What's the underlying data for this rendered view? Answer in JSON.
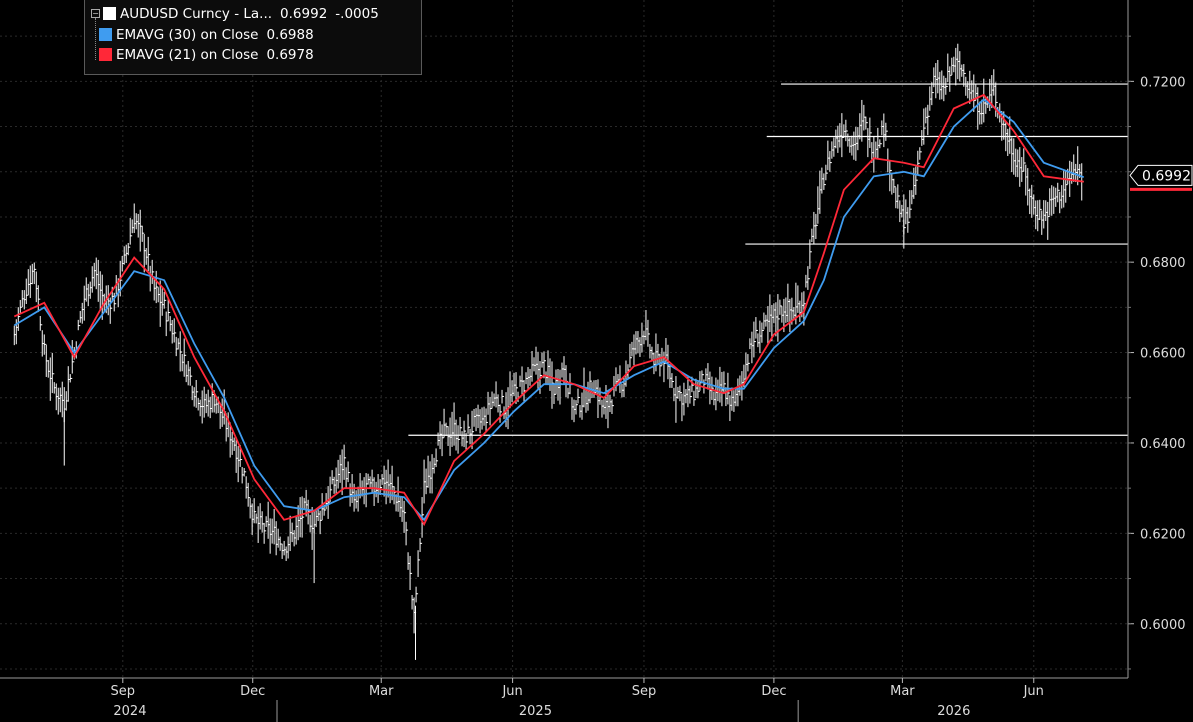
{
  "legend": {
    "items": [
      {
        "label": "AUDUSD Curncy - La...",
        "value": "0.6992",
        "change": "-.0005",
        "color": "#ffffff"
      },
      {
        "label": "EMAVG (30)  on Close",
        "value": "0.6988",
        "change": "",
        "color": "#3f9cf0"
      },
      {
        "label": "EMAVG (21)  on Close",
        "value": "0.6978",
        "change": "",
        "color": "#ff2838"
      }
    ]
  },
  "chart_data": {
    "type": "line",
    "title": "",
    "xlabel": "",
    "ylabel": "",
    "ylim": [
      0.588,
      0.738
    ],
    "yticks": [
      0.6,
      0.62,
      0.64,
      0.66,
      0.68,
      0.72
    ],
    "last_price_label": "0.6992",
    "last_price": 0.6992,
    "x_month_labels": [
      "Sep",
      "Dec",
      "Mar",
      "Jun",
      "Sep",
      "Dec",
      "Mar",
      "Jun"
    ],
    "x_year_labels": [
      "2024",
      "2025",
      "2026"
    ],
    "horizontal_levels": [
      {
        "value": 0.7194,
        "from": "2025-12-20"
      },
      {
        "value": 0.7078,
        "from": "2025-12-10"
      },
      {
        "value": 0.684,
        "from": "2025-11-25"
      },
      {
        "value": 0.6417,
        "from": "2025-04-03"
      }
    ],
    "series": [
      {
        "name": "AUDUSD Curncy - La...",
        "style": "bars",
        "color": "#ffffff",
        "points": [
          [
            "2024-07-01",
            0.664
          ],
          [
            "2024-07-08",
            0.673
          ],
          [
            "2024-07-15",
            0.679
          ],
          [
            "2024-07-22",
            0.66
          ],
          [
            "2024-07-29",
            0.652
          ],
          [
            "2024-08-05",
            0.649
          ],
          [
            "2024-08-12",
            0.66
          ],
          [
            "2024-08-19",
            0.672
          ],
          [
            "2024-08-26",
            0.678
          ],
          [
            "2024-09-02",
            0.671
          ],
          [
            "2024-09-09",
            0.672
          ],
          [
            "2024-09-16",
            0.68
          ],
          [
            "2024-09-23",
            0.69
          ],
          [
            "2024-09-30",
            0.684
          ],
          [
            "2024-10-07",
            0.674
          ],
          [
            "2024-10-14",
            0.67
          ],
          [
            "2024-10-21",
            0.664
          ],
          [
            "2024-10-28",
            0.658
          ],
          [
            "2024-11-04",
            0.652
          ],
          [
            "2024-11-11",
            0.648
          ],
          [
            "2024-11-18",
            0.65
          ],
          [
            "2024-11-25",
            0.645
          ],
          [
            "2024-12-02",
            0.64
          ],
          [
            "2024-12-09",
            0.633
          ],
          [
            "2024-12-16",
            0.623
          ],
          [
            "2024-12-23",
            0.621
          ],
          [
            "2024-12-30",
            0.62
          ],
          [
            "2025-01-06",
            0.617
          ],
          [
            "2025-01-13",
            0.62
          ],
          [
            "2025-01-20",
            0.625
          ],
          [
            "2025-01-27",
            0.622
          ],
          [
            "2025-02-03",
            0.626
          ],
          [
            "2025-02-10",
            0.631
          ],
          [
            "2025-02-17",
            0.636
          ],
          [
            "2025-02-24",
            0.626
          ],
          [
            "2025-03-03",
            0.63
          ],
          [
            "2025-03-10",
            0.63
          ],
          [
            "2025-03-17",
            0.632
          ],
          [
            "2025-03-24",
            0.629
          ],
          [
            "2025-03-31",
            0.624
          ],
          [
            "2025-04-07",
            0.601
          ],
          [
            "2025-04-14",
            0.63
          ],
          [
            "2025-04-21",
            0.637
          ],
          [
            "2025-04-28",
            0.642
          ],
          [
            "2025-05-05",
            0.643
          ],
          [
            "2025-05-12",
            0.641
          ],
          [
            "2025-05-19",
            0.644
          ],
          [
            "2025-05-26",
            0.645
          ],
          [
            "2025-06-02",
            0.65
          ],
          [
            "2025-06-09",
            0.648
          ],
          [
            "2025-06-16",
            0.651
          ],
          [
            "2025-06-23",
            0.653
          ],
          [
            "2025-06-30",
            0.656
          ],
          [
            "2025-07-07",
            0.657
          ],
          [
            "2025-07-14",
            0.652
          ],
          [
            "2025-07-21",
            0.657
          ],
          [
            "2025-07-28",
            0.647
          ],
          [
            "2025-08-04",
            0.65
          ],
          [
            "2025-08-11",
            0.653
          ],
          [
            "2025-08-18",
            0.647
          ],
          [
            "2025-08-25",
            0.651
          ],
          [
            "2025-09-01",
            0.654
          ],
          [
            "2025-09-08",
            0.661
          ],
          [
            "2025-09-15",
            0.665
          ],
          [
            "2025-09-22",
            0.658
          ],
          [
            "2025-09-29",
            0.659
          ],
          [
            "2025-10-06",
            0.652
          ],
          [
            "2025-10-13",
            0.65
          ],
          [
            "2025-10-20",
            0.651
          ],
          [
            "2025-10-27",
            0.654
          ],
          [
            "2025-11-03",
            0.65
          ],
          [
            "2025-11-10",
            0.652
          ],
          [
            "2025-11-17",
            0.648
          ],
          [
            "2025-11-24",
            0.656
          ],
          [
            "2025-12-01",
            0.663
          ],
          [
            "2025-12-08",
            0.665
          ],
          [
            "2025-12-15",
            0.668
          ],
          [
            "2025-12-22",
            0.67
          ],
          [
            "2025-12-29",
            0.669
          ],
          [
            "2026-01-05",
            0.672
          ],
          [
            "2026-01-12",
            0.687
          ],
          [
            "2026-01-19",
            0.699
          ],
          [
            "2026-01-26",
            0.706
          ],
          [
            "2026-02-02",
            0.71
          ],
          [
            "2026-02-09",
            0.706
          ],
          [
            "2026-02-16",
            0.711
          ],
          [
            "2026-02-23",
            0.705
          ],
          [
            "2026-03-02",
            0.71
          ],
          [
            "2026-03-09",
            0.696
          ],
          [
            "2026-03-16",
            0.688
          ],
          [
            "2026-03-23",
            0.695
          ],
          [
            "2026-03-30",
            0.71
          ],
          [
            "2026-04-06",
            0.72
          ],
          [
            "2026-04-13",
            0.718
          ],
          [
            "2026-04-20",
            0.724
          ],
          [
            "2026-04-27",
            0.722
          ],
          [
            "2026-05-04",
            0.716
          ],
          [
            "2026-05-11",
            0.714
          ],
          [
            "2026-05-18",
            0.718
          ],
          [
            "2026-05-25",
            0.71
          ],
          [
            "2026-06-01",
            0.704
          ],
          [
            "2026-06-08",
            0.7
          ],
          [
            "2026-06-15",
            0.692
          ],
          [
            "2026-06-22",
            0.69
          ],
          [
            "2026-06-29",
            0.694
          ],
          [
            "2026-07-06",
            0.696
          ],
          [
            "2026-07-13",
            0.7
          ],
          [
            "2026-07-20",
            0.6992
          ]
        ]
      },
      {
        "name": "EMAVG (30)  on Close",
        "style": "line",
        "color": "#3f9cf0",
        "points": [
          [
            "2024-07-01",
            0.666
          ],
          [
            "2024-07-22",
            0.67
          ],
          [
            "2024-08-12",
            0.66
          ],
          [
            "2024-09-02",
            0.669
          ],
          [
            "2024-09-23",
            0.678
          ],
          [
            "2024-10-14",
            0.676
          ],
          [
            "2024-11-04",
            0.662
          ],
          [
            "2024-11-25",
            0.65
          ],
          [
            "2024-12-16",
            0.635
          ],
          [
            "2025-01-06",
            0.626
          ],
          [
            "2025-01-27",
            0.625
          ],
          [
            "2025-02-17",
            0.628
          ],
          [
            "2025-03-10",
            0.629
          ],
          [
            "2025-03-31",
            0.628
          ],
          [
            "2025-04-14",
            0.623
          ],
          [
            "2025-05-05",
            0.634
          ],
          [
            "2025-05-26",
            0.64
          ],
          [
            "2025-06-16",
            0.647
          ],
          [
            "2025-07-07",
            0.653
          ],
          [
            "2025-07-28",
            0.653
          ],
          [
            "2025-08-18",
            0.651
          ],
          [
            "2025-09-08",
            0.655
          ],
          [
            "2025-09-29",
            0.658
          ],
          [
            "2025-10-20",
            0.654
          ],
          [
            "2025-11-10",
            0.652
          ],
          [
            "2025-11-24",
            0.652
          ],
          [
            "2025-12-15",
            0.661
          ],
          [
            "2026-01-05",
            0.667
          ],
          [
            "2026-01-19",
            0.676
          ],
          [
            "2026-02-02",
            0.69
          ],
          [
            "2026-02-23",
            0.699
          ],
          [
            "2026-03-16",
            0.7
          ],
          [
            "2026-03-30",
            0.699
          ],
          [
            "2026-04-20",
            0.71
          ],
          [
            "2026-05-11",
            0.716
          ],
          [
            "2026-06-01",
            0.711
          ],
          [
            "2026-06-22",
            0.702
          ],
          [
            "2026-07-20",
            0.6988
          ]
        ]
      },
      {
        "name": "EMAVG (21)  on Close",
        "style": "line",
        "color": "#ff2838",
        "points": [
          [
            "2024-07-01",
            0.668
          ],
          [
            "2024-07-22",
            0.671
          ],
          [
            "2024-08-12",
            0.659
          ],
          [
            "2024-09-02",
            0.671
          ],
          [
            "2024-09-23",
            0.681
          ],
          [
            "2024-10-14",
            0.674
          ],
          [
            "2024-11-04",
            0.659
          ],
          [
            "2024-11-25",
            0.647
          ],
          [
            "2024-12-16",
            0.632
          ],
          [
            "2025-01-06",
            0.623
          ],
          [
            "2025-01-27",
            0.625
          ],
          [
            "2025-02-17",
            0.63
          ],
          [
            "2025-03-10",
            0.63
          ],
          [
            "2025-03-31",
            0.629
          ],
          [
            "2025-04-14",
            0.622
          ],
          [
            "2025-05-05",
            0.636
          ],
          [
            "2025-05-26",
            0.642
          ],
          [
            "2025-06-16",
            0.649
          ],
          [
            "2025-07-07",
            0.655
          ],
          [
            "2025-07-28",
            0.653
          ],
          [
            "2025-08-18",
            0.65
          ],
          [
            "2025-09-08",
            0.657
          ],
          [
            "2025-09-29",
            0.659
          ],
          [
            "2025-10-20",
            0.653
          ],
          [
            "2025-11-10",
            0.651
          ],
          [
            "2025-11-24",
            0.653
          ],
          [
            "2025-12-15",
            0.664
          ],
          [
            "2026-01-05",
            0.669
          ],
          [
            "2026-01-19",
            0.682
          ],
          [
            "2026-02-02",
            0.696
          ],
          [
            "2026-02-23",
            0.703
          ],
          [
            "2026-03-16",
            0.702
          ],
          [
            "2026-03-30",
            0.701
          ],
          [
            "2026-04-20",
            0.714
          ],
          [
            "2026-05-11",
            0.717
          ],
          [
            "2026-06-01",
            0.709
          ],
          [
            "2026-06-22",
            0.699
          ],
          [
            "2026-07-20",
            0.6978
          ]
        ]
      }
    ]
  }
}
